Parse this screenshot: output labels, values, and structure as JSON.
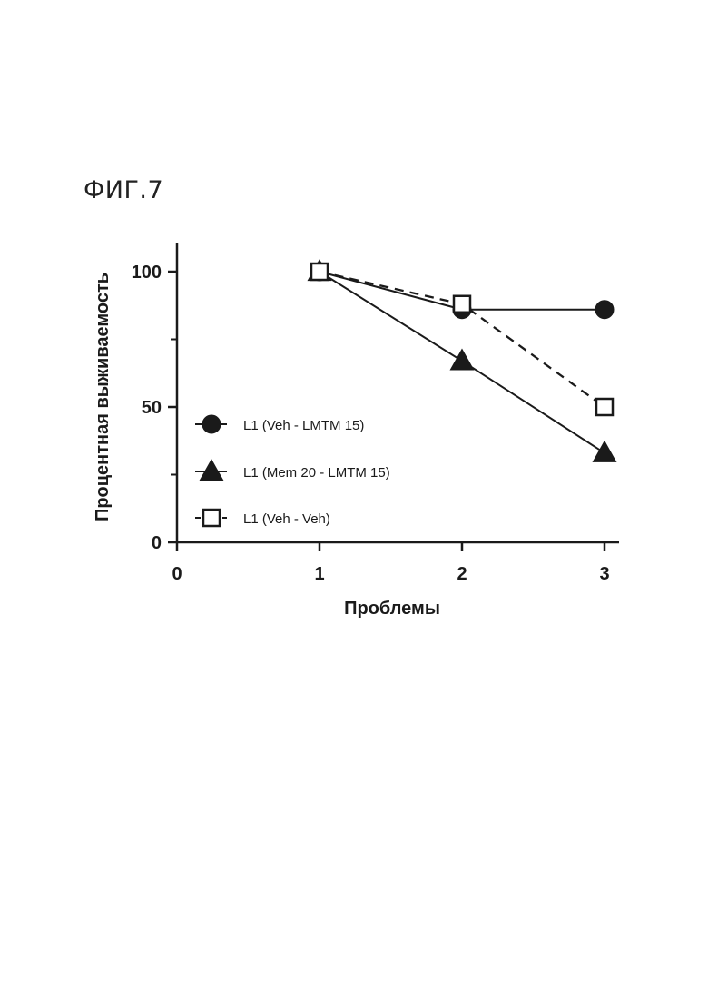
{
  "figure": {
    "label": "ФИГ.7"
  },
  "chart_data": {
    "type": "line",
    "title": "",
    "xlabel": "Проблемы",
    "ylabel": "Процентная выживаемость",
    "xlim": [
      0,
      3.1
    ],
    "ylim": [
      0,
      110
    ],
    "x_ticks": [
      0,
      1,
      2,
      3
    ],
    "x_tick_labels": [
      "0",
      "1",
      "2",
      "3"
    ],
    "y_ticks": [
      0,
      50,
      100
    ],
    "y_tick_labels": [
      "0",
      "50",
      "100"
    ],
    "y_minor_ticks": [
      25,
      75
    ],
    "grid": false,
    "legend_position": "lower-left",
    "x": [
      1,
      2,
      3
    ],
    "series": [
      {
        "name": "L1 (Veh - LMTM 15)",
        "values": [
          100,
          86,
          86
        ],
        "marker": "filled-circle",
        "line_style": "solid"
      },
      {
        "name": "L1 (Mem 20 - LMTM 15)",
        "values": [
          100,
          67,
          33
        ],
        "marker": "filled-triangle",
        "line_style": "solid"
      },
      {
        "name": "L1 (Veh - Veh)",
        "values": [
          100,
          88,
          50
        ],
        "marker": "open-square",
        "line_style": "dashed"
      }
    ],
    "colors": {
      "ink": "#1a1a1a",
      "background": "#ffffff"
    }
  }
}
